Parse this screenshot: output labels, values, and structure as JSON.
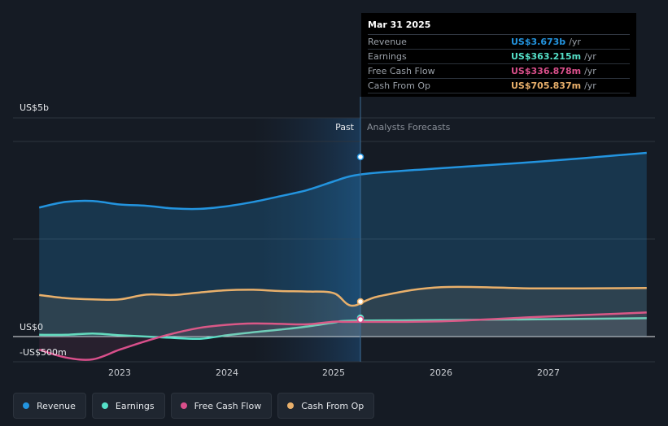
{
  "chart_data": {
    "type": "line",
    "x_ticks": [
      "2023",
      "2024",
      "2025",
      "2026",
      "2027"
    ],
    "y_ticks": [
      "US$5b",
      "US$0",
      "-US$500m"
    ],
    "past_label": "Past",
    "forecast_label": "Analysts Forecasts",
    "colors": {
      "Revenue": "#2394df",
      "Earnings": "#55e0c8",
      "Free Cash Flow": "#d94f8b",
      "Cash From Op": "#e9b06b"
    },
    "series": [
      {
        "name": "Revenue",
        "x": [
          "2022-04",
          "2022-07",
          "2022-10",
          "2023-01",
          "2023-04",
          "2023-07",
          "2023-10",
          "2024-01",
          "2024-04",
          "2024-07",
          "2024-10",
          "2025-01",
          "2025-03",
          "2025-06",
          "2026-01",
          "2026-12",
          "2027-12"
        ],
        "values": [
          2.95,
          3.08,
          3.1,
          3.02,
          2.99,
          2.93,
          2.92,
          2.98,
          3.08,
          3.21,
          3.35,
          3.55,
          3.673,
          3.75,
          3.85,
          4.0,
          4.2
        ]
      },
      {
        "name": "Earnings",
        "x": [
          "2022-04",
          "2022-07",
          "2022-10",
          "2023-01",
          "2023-04",
          "2023-07",
          "2023-10",
          "2024-01",
          "2024-04",
          "2024-07",
          "2024-10",
          "2025-01",
          "2025-03",
          "2026-01",
          "2027-12"
        ],
        "values": [
          0.04,
          0.04,
          0.07,
          0.03,
          0.0,
          -0.03,
          -0.05,
          0.03,
          0.1,
          0.16,
          0.23,
          0.32,
          0.363,
          0.375,
          0.42
        ]
      },
      {
        "name": "Free Cash Flow",
        "x": [
          "2022-04",
          "2022-07",
          "2022-10",
          "2023-01",
          "2023-04",
          "2023-07",
          "2023-10",
          "2024-01",
          "2024-04",
          "2024-07",
          "2024-10",
          "2025-01",
          "2025-03",
          "2026-01",
          "2026-12",
          "2027-12"
        ],
        "values": [
          -0.3,
          -0.48,
          -0.52,
          -0.3,
          -0.1,
          0.07,
          0.2,
          0.27,
          0.3,
          0.29,
          0.28,
          0.34,
          0.337,
          0.35,
          0.45,
          0.55
        ]
      },
      {
        "name": "Cash From Op",
        "x": [
          "2022-04",
          "2022-07",
          "2022-10",
          "2023-01",
          "2023-04",
          "2023-07",
          "2023-10",
          "2024-01",
          "2024-04",
          "2024-07",
          "2024-10",
          "2025-01",
          "2025-03",
          "2025-06",
          "2026-01",
          "2026-12",
          "2027-12"
        ],
        "values": [
          0.95,
          0.88,
          0.85,
          0.85,
          0.96,
          0.95,
          1.01,
          1.06,
          1.07,
          1.04,
          1.03,
          0.99,
          0.706,
          0.92,
          1.13,
          1.1,
          1.11
        ]
      }
    ]
  },
  "tooltip": {
    "date": "Mar 31 2025",
    "rows": [
      {
        "label": "Revenue",
        "value": "US$3.673b",
        "unit": "/yr",
        "color": "#2394df"
      },
      {
        "label": "Earnings",
        "value": "US$363.215m",
        "unit": "/yr",
        "color": "#55e0c8"
      },
      {
        "label": "Free Cash Flow",
        "value": "US$336.878m",
        "unit": "/yr",
        "color": "#d94f8b"
      },
      {
        "label": "Cash From Op",
        "value": "US$705.837m",
        "unit": "/yr",
        "color": "#e9b06b"
      }
    ]
  },
  "legend": [
    {
      "label": "Revenue",
      "color": "#2394df"
    },
    {
      "label": "Earnings",
      "color": "#55e0c8"
    },
    {
      "label": "Free Cash Flow",
      "color": "#d94f8b"
    },
    {
      "label": "Cash From Op",
      "color": "#e9b06b"
    }
  ]
}
